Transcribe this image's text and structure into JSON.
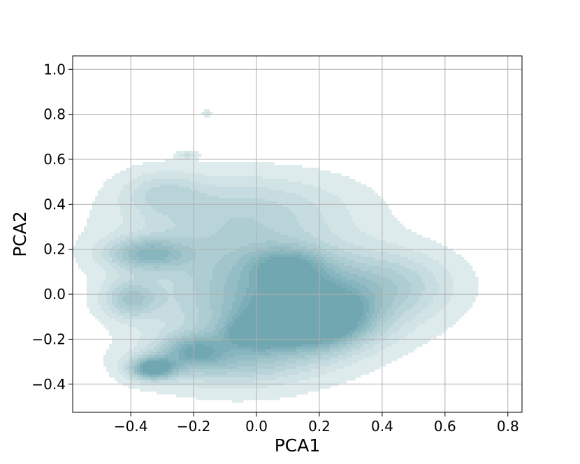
{
  "chart_data": {
    "type": "kde_contour",
    "title": "",
    "xlabel": "PCA1",
    "ylabel": "PCA2",
    "xlim": [
      -0.585,
      0.845
    ],
    "ylim": [
      -0.525,
      1.06
    ],
    "x_ticks": [
      -0.4,
      -0.2,
      0.0,
      0.2,
      0.4,
      0.6,
      0.8
    ],
    "x_tick_labels": [
      "−0.4",
      "−0.2",
      "0.0",
      "0.2",
      "0.4",
      "0.6",
      "0.8"
    ],
    "y_ticks": [
      -0.4,
      -0.2,
      0.0,
      0.2,
      0.4,
      0.6,
      0.8,
      1.0
    ],
    "y_tick_labels": [
      "−0.4",
      "−0.2",
      "0.0",
      "0.2",
      "0.4",
      "0.6",
      "0.8",
      "1.0"
    ],
    "grid": true,
    "legend": "none",
    "color": "#5b9aa5",
    "density_components": [
      {
        "x": 0.18,
        "y": -0.11,
        "sx": 0.11,
        "sy": 0.085,
        "w": 1.0
      },
      {
        "x": 0.0,
        "y": -0.17,
        "sx": 0.07,
        "sy": 0.05,
        "w": 0.55
      },
      {
        "x": 0.1,
        "y": 0.12,
        "sx": 0.08,
        "sy": 0.06,
        "w": 0.45
      },
      {
        "x": 0.2,
        "y": -0.02,
        "sx": 0.2,
        "sy": 0.14,
        "w": 0.45
      },
      {
        "x": -0.05,
        "y": -0.05,
        "sx": 0.2,
        "sy": 0.2,
        "w": 0.35
      },
      {
        "x": -0.33,
        "y": -0.33,
        "sx": 0.05,
        "sy": 0.035,
        "w": 0.8
      },
      {
        "x": -0.2,
        "y": -0.25,
        "sx": 0.07,
        "sy": 0.05,
        "w": 0.45
      },
      {
        "x": -0.1,
        "y": -0.3,
        "sx": 0.18,
        "sy": 0.07,
        "w": 0.3
      },
      {
        "x": -0.35,
        "y": 0.18,
        "sx": 0.09,
        "sy": 0.05,
        "w": 0.5
      },
      {
        "x": -0.4,
        "y": -0.02,
        "sx": 0.06,
        "sy": 0.06,
        "w": 0.4
      },
      {
        "x": -0.3,
        "y": 0.45,
        "sx": 0.09,
        "sy": 0.07,
        "w": 0.22
      },
      {
        "x": 0.0,
        "y": 0.4,
        "sx": 0.22,
        "sy": 0.1,
        "w": 0.18
      },
      {
        "x": 0.45,
        "y": 0.05,
        "sx": 0.13,
        "sy": 0.1,
        "w": 0.22
      },
      {
        "x": -0.1,
        "y": 0.25,
        "sx": 0.25,
        "sy": 0.15,
        "w": 0.2
      },
      {
        "x": -0.22,
        "y": 0.62,
        "sx": 0.02,
        "sy": 0.012,
        "w": 0.2
      },
      {
        "x": -0.16,
        "y": 0.805,
        "sx": 0.012,
        "sy": 0.008,
        "w": 0.2
      }
    ],
    "contour_levels": [
      0.05,
      0.13,
      0.21,
      0.29,
      0.37,
      0.45,
      0.53,
      0.61,
      0.69,
      0.77
    ]
  }
}
